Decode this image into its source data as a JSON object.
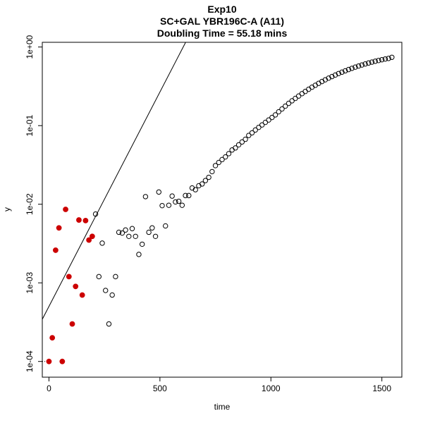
{
  "chart_data": {
    "type": "scatter",
    "title": "Exp10",
    "subtitle": "SC+GAL YBR196C-A (A11)",
    "subtitle2": "Doubling Time = 55.18 mins",
    "xlabel": "time",
    "ylabel": "y",
    "xlim": [
      -30,
      1590
    ],
    "ylim_log10": [
      -4.2,
      0.06
    ],
    "y_scale": "log",
    "x_ticks": [
      0,
      500,
      1000,
      1500
    ],
    "x_tick_labels": [
      "0",
      "500",
      "1000",
      "1500"
    ],
    "y_ticks": [
      0.0001,
      0.001,
      0.01,
      0.1,
      1
    ],
    "y_tick_labels": [
      "1e-04",
      "1e-03",
      "1e-02",
      "1e-01",
      "1e+00"
    ],
    "grid": false,
    "highlight_color": "#cc0000",
    "fit_line": {
      "intercept_log10": -3.3,
      "slope_log10_per_min": 0.005456
    },
    "baseline_dotted": {
      "x": [
        -30,
        0
      ],
      "y": 0.0001
    },
    "series": [
      {
        "style": "filled",
        "points": [
          [
            0,
            0.0001
          ],
          [
            15,
            0.0002
          ],
          [
            30,
            0.0026
          ],
          [
            45,
            0.005
          ],
          [
            60,
            0.0001
          ],
          [
            75,
            0.0086
          ],
          [
            90,
            0.0012
          ],
          [
            105,
            0.0003
          ],
          [
            120,
            0.0009
          ],
          [
            135,
            0.0063
          ],
          [
            150,
            0.0007
          ],
          [
            165,
            0.0062
          ],
          [
            180,
            0.0035
          ],
          [
            195,
            0.0039
          ]
        ]
      },
      {
        "style": "open",
        "points": [
          [
            210,
            0.0075
          ],
          [
            225,
            0.0012
          ],
          [
            240,
            0.0032
          ],
          [
            255,
            0.0008
          ],
          [
            270,
            0.0003
          ],
          [
            285,
            0.0007
          ],
          [
            300,
            0.0012
          ],
          [
            315,
            0.0044
          ],
          [
            330,
            0.0043
          ],
          [
            345,
            0.0047
          ],
          [
            360,
            0.0039
          ],
          [
            375,
            0.0049
          ],
          [
            390,
            0.0039
          ],
          [
            405,
            0.0023
          ],
          [
            420,
            0.0031
          ],
          [
            435,
            0.0125
          ],
          [
            450,
            0.0044
          ],
          [
            465,
            0.005
          ],
          [
            480,
            0.0039
          ],
          [
            495,
            0.0143
          ],
          [
            510,
            0.0096
          ],
          [
            525,
            0.0053
          ],
          [
            540,
            0.0097
          ],
          [
            555,
            0.0127
          ],
          [
            570,
            0.0107
          ],
          [
            585,
            0.0109
          ],
          [
            600,
            0.0097
          ],
          [
            615,
            0.0129
          ],
          [
            630,
            0.0129
          ],
          [
            645,
            0.0161
          ],
          [
            660,
            0.0153
          ],
          [
            675,
            0.0172
          ],
          [
            690,
            0.0181
          ],
          [
            705,
            0.02
          ],
          [
            720,
            0.022
          ],
          [
            735,
            0.026
          ],
          [
            750,
            0.031
          ],
          [
            765,
            0.034
          ],
          [
            780,
            0.037
          ],
          [
            795,
            0.04
          ],
          [
            810,
            0.044
          ],
          [
            825,
            0.049
          ],
          [
            840,
            0.052
          ],
          [
            855,
            0.057
          ],
          [
            870,
            0.062
          ],
          [
            885,
            0.067
          ],
          [
            900,
            0.075
          ],
          [
            915,
            0.081
          ],
          [
            930,
            0.088
          ],
          [
            945,
            0.095
          ],
          [
            960,
            0.102
          ],
          [
            975,
            0.11
          ],
          [
            990,
            0.118
          ],
          [
            1005,
            0.127
          ],
          [
            1020,
            0.137
          ],
          [
            1035,
            0.15
          ],
          [
            1050,
            0.163
          ],
          [
            1065,
            0.177
          ],
          [
            1080,
            0.192
          ],
          [
            1095,
            0.207
          ],
          [
            1110,
            0.222
          ],
          [
            1125,
            0.238
          ],
          [
            1140,
            0.255
          ],
          [
            1155,
            0.272
          ],
          [
            1170,
            0.29
          ],
          [
            1185,
            0.308
          ],
          [
            1200,
            0.326
          ],
          [
            1215,
            0.345
          ],
          [
            1230,
            0.364
          ],
          [
            1245,
            0.383
          ],
          [
            1260,
            0.402
          ],
          [
            1275,
            0.421
          ],
          [
            1290,
            0.44
          ],
          [
            1305,
            0.46
          ],
          [
            1320,
            0.479
          ],
          [
            1335,
            0.498
          ],
          [
            1350,
            0.517
          ],
          [
            1365,
            0.536
          ],
          [
            1380,
            0.555
          ],
          [
            1395,
            0.573
          ],
          [
            1410,
            0.591
          ],
          [
            1425,
            0.609
          ],
          [
            1440,
            0.626
          ],
          [
            1455,
            0.643
          ],
          [
            1470,
            0.659
          ],
          [
            1485,
            0.674
          ],
          [
            1500,
            0.689
          ],
          [
            1515,
            0.703
          ],
          [
            1530,
            0.716
          ],
          [
            1545,
            0.74
          ]
        ]
      }
    ]
  }
}
